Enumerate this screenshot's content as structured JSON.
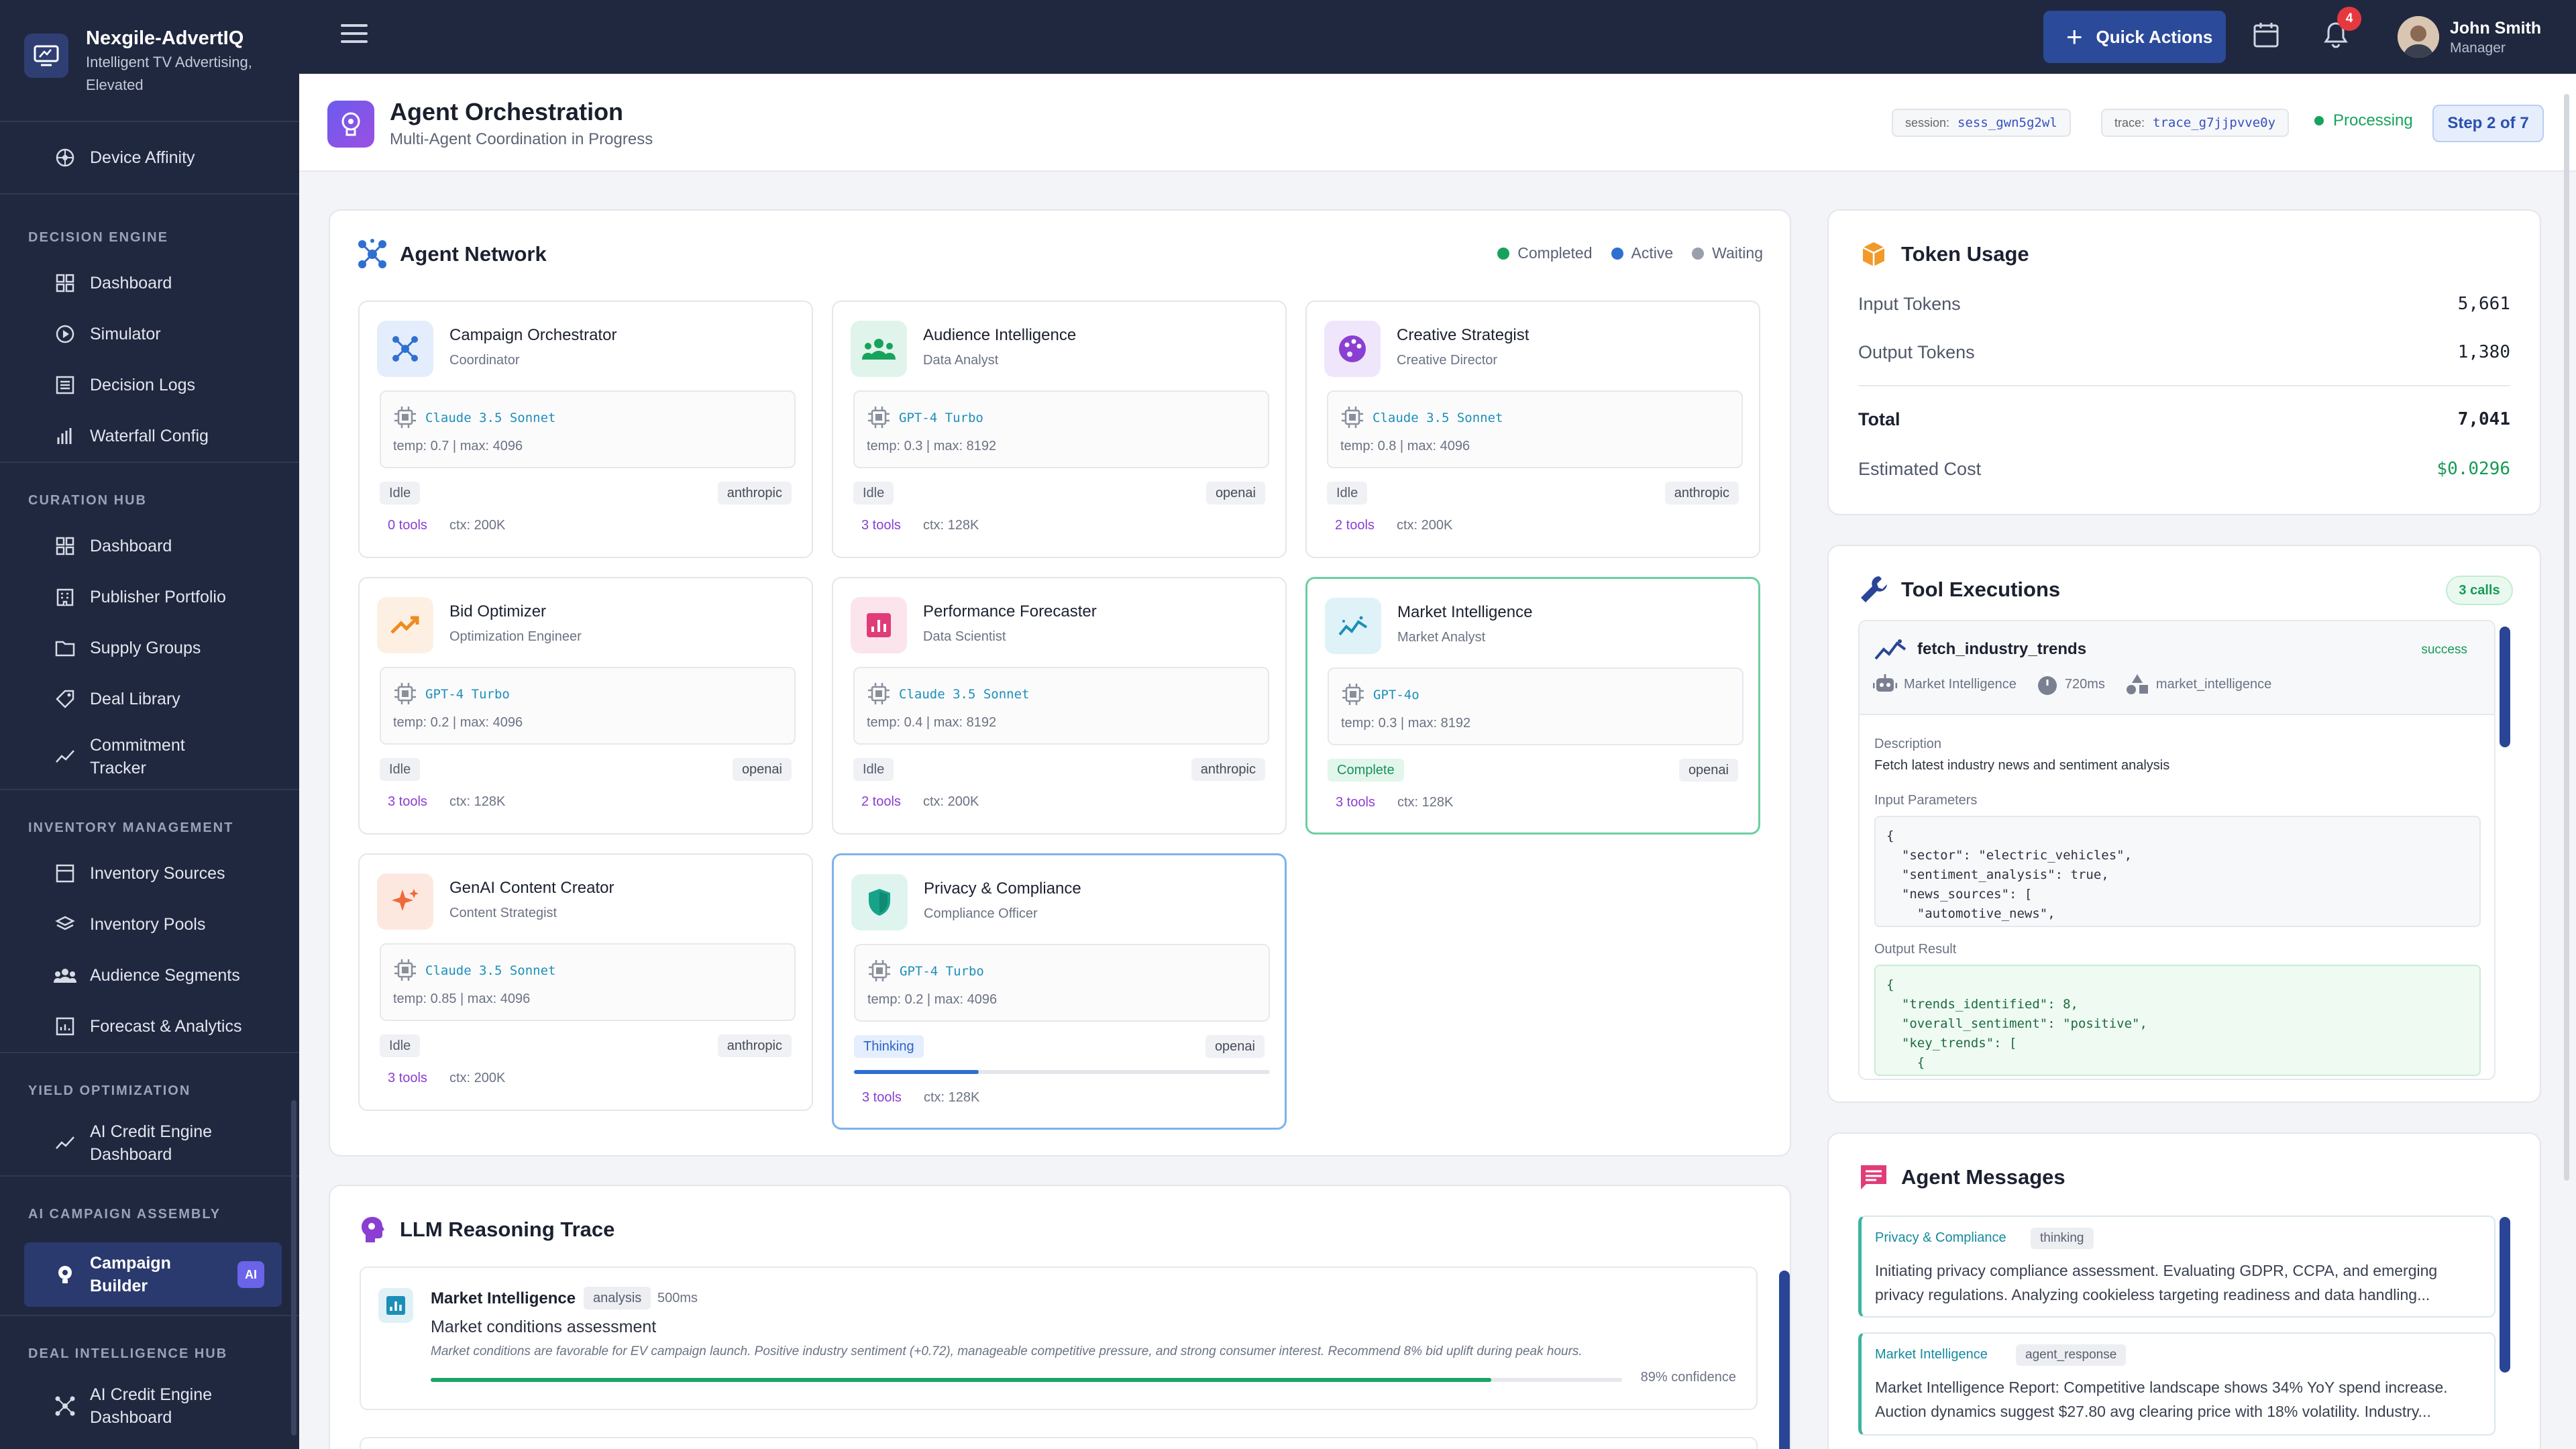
{
  "brand": {
    "name": "Nexgile-AdvertIQ",
    "tagline": "Intelligent TV Advertising, Elevated"
  },
  "sidebar": {
    "top_item": "Device Affinity",
    "sections": [
      {
        "title": "DECISION ENGINE",
        "items": [
          "Dashboard",
          "Simulator",
          "Decision Logs",
          "Waterfall Config"
        ]
      },
      {
        "title": "CURATION HUB",
        "items": [
          "Dashboard",
          "Publisher Portfolio",
          "Supply Groups",
          "Deal Library",
          "Commitment Tracker"
        ]
      },
      {
        "title": "INVENTORY MANAGEMENT",
        "items": [
          "Inventory Sources",
          "Inventory Pools",
          "Audience Segments",
          "Forecast & Analytics"
        ]
      },
      {
        "title": "YIELD OPTIMIZATION",
        "items": [
          "AI Credit Engine Dashboard"
        ]
      },
      {
        "title": "AI CAMPAIGN ASSEMBLY",
        "items": [
          "Campaign Builder"
        ]
      },
      {
        "title": "DEAL INTELLIGENCE HUB",
        "items": [
          "AI Credit Engine Dashboard"
        ]
      }
    ],
    "ai_badge": "AI"
  },
  "topbar": {
    "quick_actions": "Quick Actions",
    "notif_count": "4",
    "user_name": "John Smith",
    "user_role": "Manager"
  },
  "header": {
    "title": "Agent Orchestration",
    "subtitle": "Multi-Agent Coordination in Progress",
    "session_label": "session:",
    "session_value": "sess_gwn5g2wl",
    "trace_label": "trace:",
    "trace_value": "trace_g7jjpvve0y",
    "status": "Processing",
    "step": "Step 2 of 7"
  },
  "agent_network": {
    "title": "Agent Network",
    "legend": {
      "completed": "Completed",
      "active": "Active",
      "waiting": "Waiting"
    },
    "agents": [
      {
        "name": "Campaign Orchestrator",
        "role": "Coordinator",
        "model": "Claude 3.5 Sonnet",
        "params": "temp: 0.7  |  max: 4096",
        "status": "Idle",
        "provider": "anthropic",
        "tools": "0 tools",
        "ctx": "ctx: 200K"
      },
      {
        "name": "Audience Intelligence",
        "role": "Data Analyst",
        "model": "GPT-4 Turbo",
        "params": "temp: 0.3  |  max: 8192",
        "status": "Idle",
        "provider": "openai",
        "tools": "3 tools",
        "ctx": "ctx: 128K"
      },
      {
        "name": "Creative Strategist",
        "role": "Creative Director",
        "model": "Claude 3.5 Sonnet",
        "params": "temp: 0.8  |  max: 4096",
        "status": "Idle",
        "provider": "anthropic",
        "tools": "2 tools",
        "ctx": "ctx: 200K"
      },
      {
        "name": "Bid Optimizer",
        "role": "Optimization Engineer",
        "model": "GPT-4 Turbo",
        "params": "temp: 0.2  |  max: 4096",
        "status": "Idle",
        "provider": "openai",
        "tools": "3 tools",
        "ctx": "ctx: 128K"
      },
      {
        "name": "Performance Forecaster",
        "role": "Data Scientist",
        "model": "Claude 3.5 Sonnet",
        "params": "temp: 0.4  |  max: 8192",
        "status": "Idle",
        "provider": "anthropic",
        "tools": "2 tools",
        "ctx": "ctx: 200K"
      },
      {
        "name": "Market Intelligence",
        "role": "Market Analyst",
        "model": "GPT-4o",
        "params": "temp: 0.3  |  max: 8192",
        "status": "Complete",
        "provider": "openai",
        "tools": "3 tools",
        "ctx": "ctx: 128K"
      },
      {
        "name": "GenAI Content Creator",
        "role": "Content Strategist",
        "model": "Claude 3.5 Sonnet",
        "params": "temp: 0.85  |  max: 4096",
        "status": "Idle",
        "provider": "anthropic",
        "tools": "3 tools",
        "ctx": "ctx: 200K"
      },
      {
        "name": "Privacy & Compliance",
        "role": "Compliance Officer",
        "model": "GPT-4 Turbo",
        "params": "temp: 0.2  |  max: 4096",
        "status": "Thinking",
        "provider": "openai",
        "tools": "3 tools",
        "ctx": "ctx: 128K",
        "progress": 0.3
      }
    ]
  },
  "token_usage": {
    "title": "Token Usage",
    "input_label": "Input Tokens",
    "input_value": "5,661",
    "output_label": "Output Tokens",
    "output_value": "1,380",
    "total_label": "Total",
    "total_value": "7,041",
    "cost_label": "Estimated Cost",
    "cost_value": "$0.0296"
  },
  "tool_executions": {
    "title": "Tool Executions",
    "calls": "3 calls",
    "tool": {
      "name": "fetch_industry_trends",
      "status": "success",
      "agent": "Market Intelligence",
      "duration": "720ms",
      "category": "market_intelligence",
      "desc_label": "Description",
      "description": "Fetch latest industry news and sentiment analysis",
      "input_label": "Input Parameters",
      "input_code": "{\n  \"sector\": \"electric_vehicles\",\n  \"sentiment_analysis\": true,\n  \"news_sources\": [\n    \"automotive_news\",\n    \"reuters\"",
      "output_label": "Output Result",
      "output_code": "{\n  \"trends_identified\": 8,\n  \"overall_sentiment\": \"positive\",\n  \"key_trends\": [\n    {"
    }
  },
  "agent_messages": {
    "title": "Agent Messages",
    "messages": [
      {
        "agent": "Privacy & Compliance",
        "tag": "thinking",
        "text": "Initiating privacy compliance assessment. Evaluating GDPR, CCPA, and emerging privacy regulations. Analyzing cookieless targeting readiness and data handling..."
      },
      {
        "agent": "Market Intelligence",
        "tag": "agent_response",
        "text": "Market Intelligence Report: Competitive landscape shows 34% YoY spend increase. Auction dynamics suggest $27.80 avg clearing price with 18% volatility. Industry..."
      }
    ]
  },
  "reasoning": {
    "title": "LLM Reasoning Trace",
    "entry": {
      "agent": "Market Intelligence",
      "tag": "analysis",
      "duration": "500ms",
      "title": "Market conditions assessment",
      "body": "Market conditions are favorable for EV campaign launch. Positive industry sentiment (+0.72), manageable competitive pressure, and strong consumer interest. Recommend 8% bid uplift during peak hours.",
      "confidence": 0.89,
      "confidence_label": "89% confidence"
    }
  }
}
